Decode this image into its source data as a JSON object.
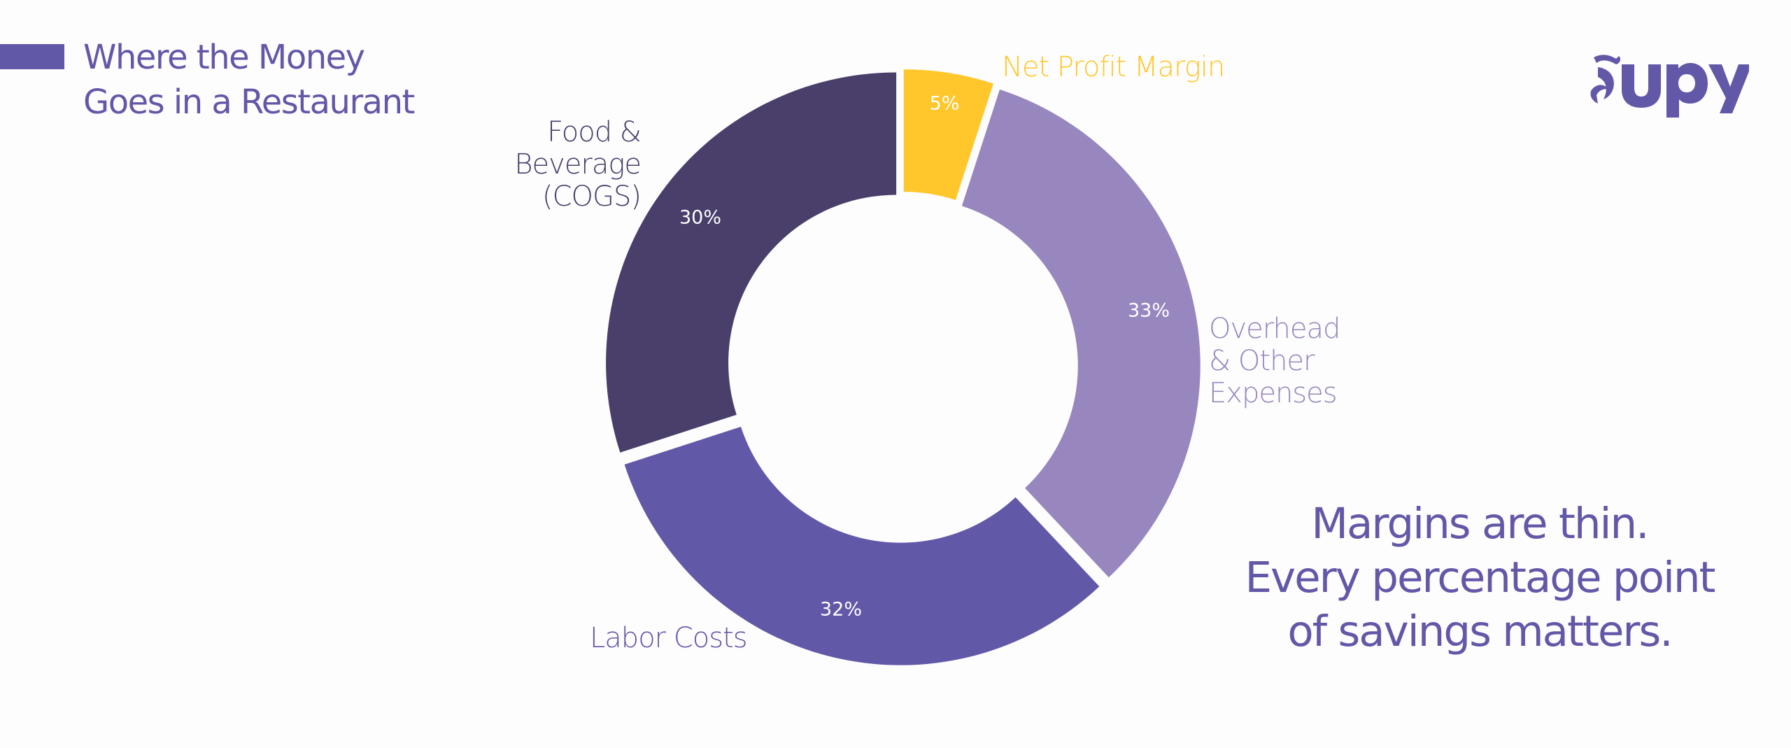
{
  "header": {
    "title_line1": "Where the Money",
    "title_line2": "Goes in a Restaurant",
    "accent_color": "#6258a8"
  },
  "logo": {
    "text": "Supy",
    "color": "#6258a8"
  },
  "tagline": {
    "line1": "Margins are thin.",
    "line2": "Every percentage point",
    "line3": "of savings matters."
  },
  "slices": [
    {
      "label": "Net Profit Margin",
      "value_label": "5%",
      "color": "#ffc72c",
      "label_color": "#ffc72c"
    },
    {
      "label_line1": "Overhead",
      "label_line2": "& Other",
      "label_line3": "Expenses",
      "value_label": "33%",
      "color": "#9886be",
      "label_color": "#9886be"
    },
    {
      "label": "Labor Costs",
      "value_label": "32%",
      "color": "#6258a8",
      "label_color": "#6258a8"
    },
    {
      "label_line1": "Food &",
      "label_line2": "Beverage",
      "label_line3": "(COGS)",
      "value_label": "30%",
      "color": "#4a3e6b",
      "label_color": "#4a3e6b"
    }
  ],
  "chart_data": {
    "type": "pie",
    "subtype": "donut",
    "title": "Where the Money Goes in a Restaurant",
    "categories": [
      "Net Profit Margin",
      "Overhead & Other Expenses",
      "Labor Costs",
      "Food & Beverage (COGS)"
    ],
    "values": [
      5,
      33,
      32,
      30
    ],
    "unit": "%",
    "colors": [
      "#ffc72c",
      "#9886be",
      "#6258a8",
      "#4a3e6b"
    ],
    "start_angle": "12 o'clock, clockwise",
    "exploded": true,
    "legend": "none (direct labels)",
    "annotation": "Margins are thin. Every percentage point of savings matters."
  }
}
